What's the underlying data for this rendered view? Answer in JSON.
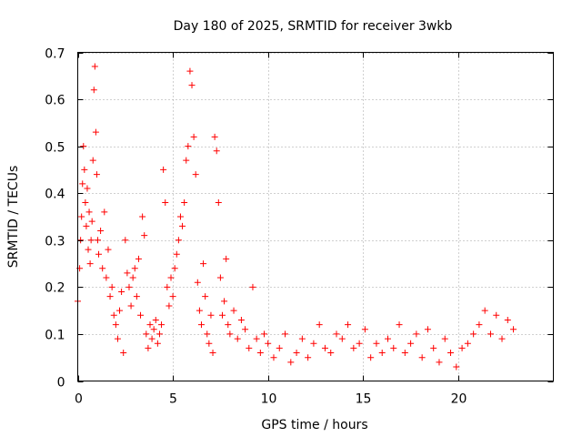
{
  "chart_data": {
    "type": "scatter",
    "title": "Day 180 of 2025, SRMTID for receiver 3wkb",
    "xlabel": "GPS time / hours",
    "ylabel": "SRMTID / TECUs",
    "xlim": [
      0,
      25
    ],
    "ylim": [
      0,
      0.7
    ],
    "x_ticks": [
      0,
      5,
      10,
      15,
      20
    ],
    "x_tick_labels": [
      "0",
      "5",
      "10",
      "15",
      "20"
    ],
    "y_ticks": [
      0,
      0.1,
      0.2,
      0.3,
      0.4,
      0.5,
      0.6,
      0.7
    ],
    "y_tick_labels": [
      "0",
      "0.1",
      "0.2",
      "0.3",
      "0.4",
      "0.5",
      "0.6",
      "0.7"
    ],
    "grid": true,
    "marker": "+",
    "marker_color": "#ff0000",
    "series": [
      {
        "name": "SRMTID",
        "x": [
          0.0,
          0.1,
          0.15,
          0.2,
          0.25,
          0.3,
          0.35,
          0.4,
          0.45,
          0.5,
          0.55,
          0.6,
          0.65,
          0.7,
          0.75,
          0.8,
          0.85,
          0.9,
          0.95,
          1.0,
          1.05,
          1.1,
          1.2,
          1.3,
          1.4,
          1.5,
          1.6,
          1.7,
          1.8,
          1.9,
          2.0,
          2.1,
          2.2,
          2.3,
          2.4,
          2.5,
          2.6,
          2.7,
          2.8,
          2.9,
          3.0,
          3.1,
          3.2,
          3.3,
          3.4,
          3.5,
          3.6,
          3.7,
          3.8,
          3.9,
          4.0,
          4.1,
          4.2,
          4.3,
          4.4,
          4.5,
          4.6,
          4.7,
          4.8,
          4.9,
          5.0,
          5.1,
          5.2,
          5.3,
          5.4,
          5.5,
          5.6,
          5.7,
          5.8,
          5.9,
          6.0,
          6.1,
          6.2,
          6.3,
          6.4,
          6.5,
          6.6,
          6.7,
          6.8,
          6.9,
          7.0,
          7.1,
          7.2,
          7.3,
          7.4,
          7.5,
          7.6,
          7.7,
          7.8,
          7.9,
          8.0,
          8.2,
          8.4,
          8.6,
          8.8,
          9.0,
          9.2,
          9.4,
          9.6,
          9.8,
          10.0,
          10.3,
          10.6,
          10.9,
          11.2,
          11.5,
          11.8,
          12.1,
          12.4,
          12.7,
          13.0,
          13.3,
          13.6,
          13.9,
          14.2,
          14.5,
          14.8,
          15.1,
          15.4,
          15.7,
          16.0,
          16.3,
          16.6,
          16.9,
          17.2,
          17.5,
          17.8,
          18.1,
          18.4,
          18.7,
          19.0,
          19.3,
          19.6,
          19.9,
          20.2,
          20.5,
          20.8,
          21.1,
          21.4,
          21.7,
          22.0,
          22.3,
          22.6,
          22.9
        ],
        "y": [
          0.17,
          0.24,
          0.3,
          0.35,
          0.42,
          0.5,
          0.45,
          0.38,
          0.33,
          0.41,
          0.28,
          0.36,
          0.25,
          0.3,
          0.34,
          0.47,
          0.62,
          0.67,
          0.53,
          0.44,
          0.3,
          0.27,
          0.32,
          0.24,
          0.36,
          0.22,
          0.28,
          0.18,
          0.2,
          0.14,
          0.12,
          0.09,
          0.15,
          0.19,
          0.06,
          0.3,
          0.23,
          0.2,
          0.16,
          0.22,
          0.24,
          0.18,
          0.26,
          0.14,
          0.35,
          0.31,
          0.1,
          0.07,
          0.12,
          0.09,
          0.11,
          0.13,
          0.08,
          0.1,
          0.12,
          0.45,
          0.38,
          0.2,
          0.16,
          0.22,
          0.18,
          0.24,
          0.27,
          0.3,
          0.35,
          0.33,
          0.38,
          0.47,
          0.5,
          0.66,
          0.63,
          0.52,
          0.44,
          0.21,
          0.15,
          0.12,
          0.25,
          0.18,
          0.1,
          0.08,
          0.14,
          0.06,
          0.52,
          0.49,
          0.38,
          0.22,
          0.14,
          0.17,
          0.26,
          0.12,
          0.1,
          0.15,
          0.09,
          0.13,
          0.11,
          0.07,
          0.2,
          0.09,
          0.06,
          0.1,
          0.08,
          0.05,
          0.07,
          0.1,
          0.04,
          0.06,
          0.09,
          0.05,
          0.08,
          0.12,
          0.07,
          0.06,
          0.1,
          0.09,
          0.12,
          0.07,
          0.08,
          0.11,
          0.05,
          0.08,
          0.06,
          0.09,
          0.07,
          0.12,
          0.06,
          0.08,
          0.1,
          0.05,
          0.11,
          0.07,
          0.04,
          0.09,
          0.06,
          0.03,
          0.07,
          0.08,
          0.1,
          0.12,
          0.15,
          0.1,
          0.14,
          0.09,
          0.13,
          0.11
        ]
      }
    ]
  }
}
